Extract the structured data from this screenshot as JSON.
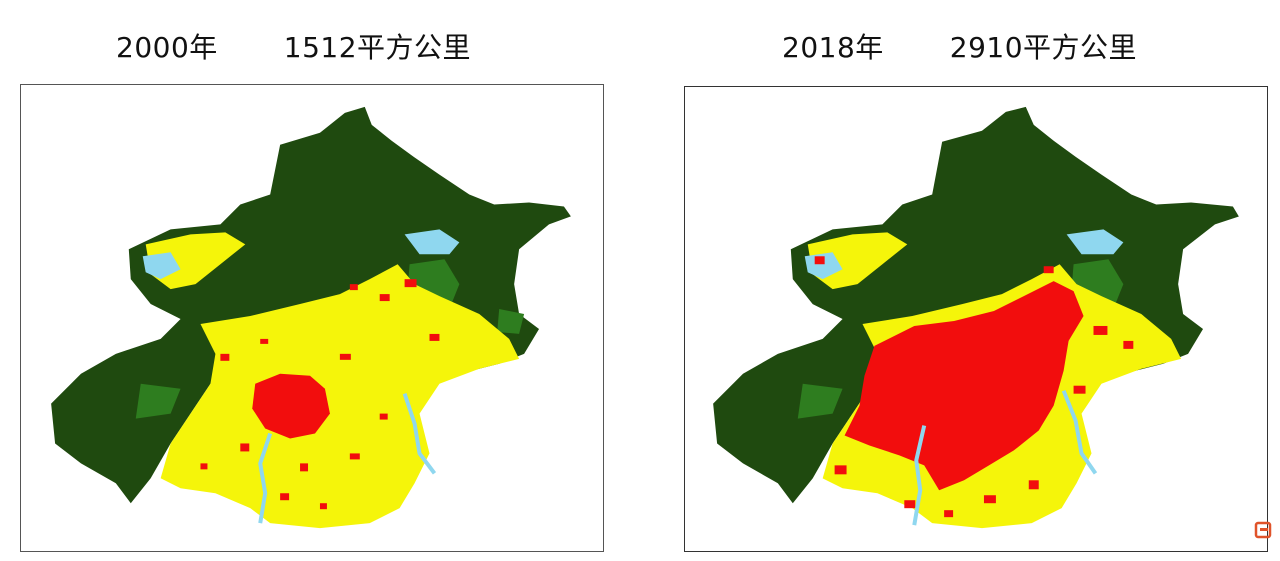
{
  "maps": [
    {
      "year_label": "2000年",
      "area_label": "1512平方公里"
    },
    {
      "year_label": "2018年",
      "area_label": "2910平方公里"
    }
  ],
  "legend_colors": {
    "mountain_forest": "#1f4a0f",
    "forest_light": "#2e7d1f",
    "farmland": "#f5f50a",
    "built_up": "#f20d0d",
    "water": "#8fd7ef"
  },
  "corner_logo_color": "#e0532a"
}
